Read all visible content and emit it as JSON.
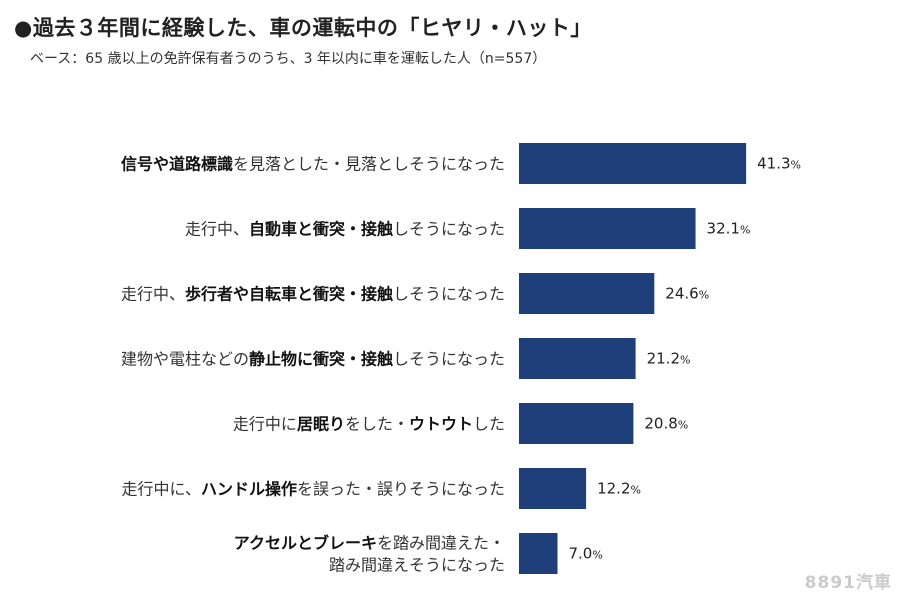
{
  "title": "●過去３年間に経験した、車の運転中の「ヒヤリ・ハット」",
  "subtitle": "ベース：65 歳以上の免許保有者うのうち、3 年以内に車を運転した人（n=557）",
  "watermark": "8891汽車",
  "colors": {
    "bar": "#1f3f7a"
  },
  "chart_data": {
    "type": "bar",
    "orientation": "horizontal",
    "title": "●過去３年間に経験した、車の運転中の「ヒヤリ・ハット」",
    "subtitle": "ベース：65 歳以上の免許保有者うのうち、3 年以内に車を運転した人（n=557）",
    "unit": "%",
    "grid": false,
    "legend": "none",
    "xlim": [
      0,
      50
    ],
    "categories": [
      "信号や道路標識を見落とした・見落としそうになった",
      "走行中、自動車と衝突・接触しそうになった",
      "走行中、歩行者や自転車と衝突・接触しそうになった",
      "建物や電柱などの静止物に衝突・接触しそうになった",
      "走行中に居眠りをした・ウトウトした",
      "走行中に、ハンドル操作を誤った・誤りそうになった",
      "アクセルとブレーキを踏み間違えた・踏み間違えそうになった"
    ],
    "category_label_lines": [
      [
        [
          [
            "信号や道路標識",
            true
          ],
          [
            "を見落とした・見落としそうになった",
            false
          ]
        ]
      ],
      [
        [
          [
            "走行中、",
            false
          ],
          [
            "自動車と衝突・接触",
            true
          ],
          [
            "しそうになった",
            false
          ]
        ]
      ],
      [
        [
          [
            "走行中、",
            false
          ],
          [
            "歩行者や自転車と衝突・接触",
            true
          ],
          [
            "しそうになった",
            false
          ]
        ]
      ],
      [
        [
          [
            "建物や電柱などの",
            false
          ],
          [
            "静止物に衝突・接触",
            true
          ],
          [
            "しそうになった",
            false
          ]
        ]
      ],
      [
        [
          [
            "走行中に",
            false
          ],
          [
            "居眠り",
            true
          ],
          [
            "をした・",
            false
          ],
          [
            "ウトウト",
            true
          ],
          [
            "した",
            false
          ]
        ]
      ],
      [
        [
          [
            "走行中に、",
            false
          ],
          [
            "ハンドル操作",
            true
          ],
          [
            "を誤った・誤りそうになった",
            false
          ]
        ]
      ],
      [
        [
          [
            "アクセルとブレーキ",
            true
          ],
          [
            "を踏み間違えた・",
            false
          ]
        ],
        [
          [
            "踏み間違えそうになった",
            false
          ]
        ]
      ]
    ],
    "values": [
      41.3,
      32.1,
      24.6,
      21.2,
      20.8,
      12.2,
      7.0
    ],
    "value_labels": [
      "41.3",
      "32.1",
      "24.6",
      "21.2",
      "20.8",
      "12.2",
      "7.0"
    ]
  }
}
